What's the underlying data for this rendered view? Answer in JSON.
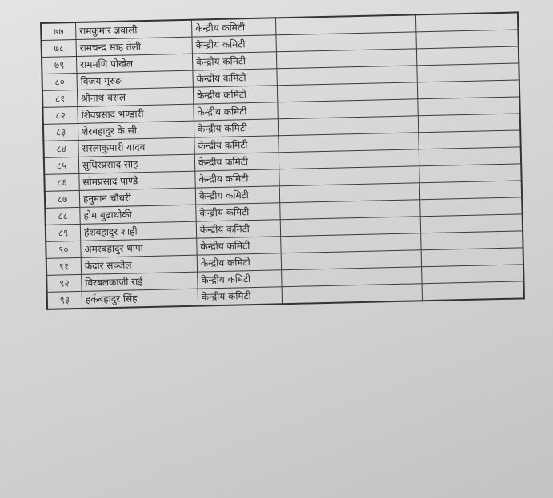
{
  "rows": [
    {
      "no": "७७",
      "name": "रामकुमार ज्ञवाली",
      "committee": "केन्द्रीय कमिटी"
    },
    {
      "no": "७८",
      "name": "रामचन्द्र साह तेली",
      "committee": "केन्द्रीय कमिटी"
    },
    {
      "no": "७९",
      "name": "राममणि पोखेल",
      "committee": "केन्द्रीय कमिटी"
    },
    {
      "no": "८०",
      "name": "विजय गुरुङ",
      "committee": "केन्द्रीय कमिटी"
    },
    {
      "no": "८१",
      "name": "श्रीनाथ बराल",
      "committee": "केन्द्रीय कमिटी"
    },
    {
      "no": "८२",
      "name": "शिवप्रसाद भण्डारी",
      "committee": "केन्द्रीय कमिटी"
    },
    {
      "no": "८३",
      "name": "शेरबहादुर के.सी.",
      "committee": "केन्द्रीय कमिटी"
    },
    {
      "no": "८४",
      "name": "सरलाकुमारी यादव",
      "committee": "केन्द्रीय कमिटी"
    },
    {
      "no": "८५",
      "name": "सुधिरप्रसाद साह",
      "committee": "केन्द्रीय कमिटी"
    },
    {
      "no": "८६",
      "name": "सोमप्रसाद पाण्डे",
      "committee": "केन्द्रीय कमिटी"
    },
    {
      "no": "८७",
      "name": "हनुमान चौधरी",
      "committee": "केन्द्रीय कमिटी"
    },
    {
      "no": "८८",
      "name": "होम बुढाथोकी",
      "committee": "केन्द्रीय कमिटी"
    },
    {
      "no": "८९",
      "name": "हंशबहादुर शाही",
      "committee": "केन्द्रीय कमिटी"
    },
    {
      "no": "९०",
      "name": "अमरबहादुर थापा",
      "committee": "केन्द्रीय कमिटी"
    },
    {
      "no": "९१",
      "name": "केदार सञ्जेल",
      "committee": "केन्द्रीय कमिटी"
    },
    {
      "no": "९२",
      "name": "विरबलकाजी राई",
      "committee": "केन्द्रीय कमिटी"
    },
    {
      "no": "९३",
      "name": "हर्कबहादुर सिंह",
      "committee": "केन्द्रीय कमिटी"
    }
  ]
}
